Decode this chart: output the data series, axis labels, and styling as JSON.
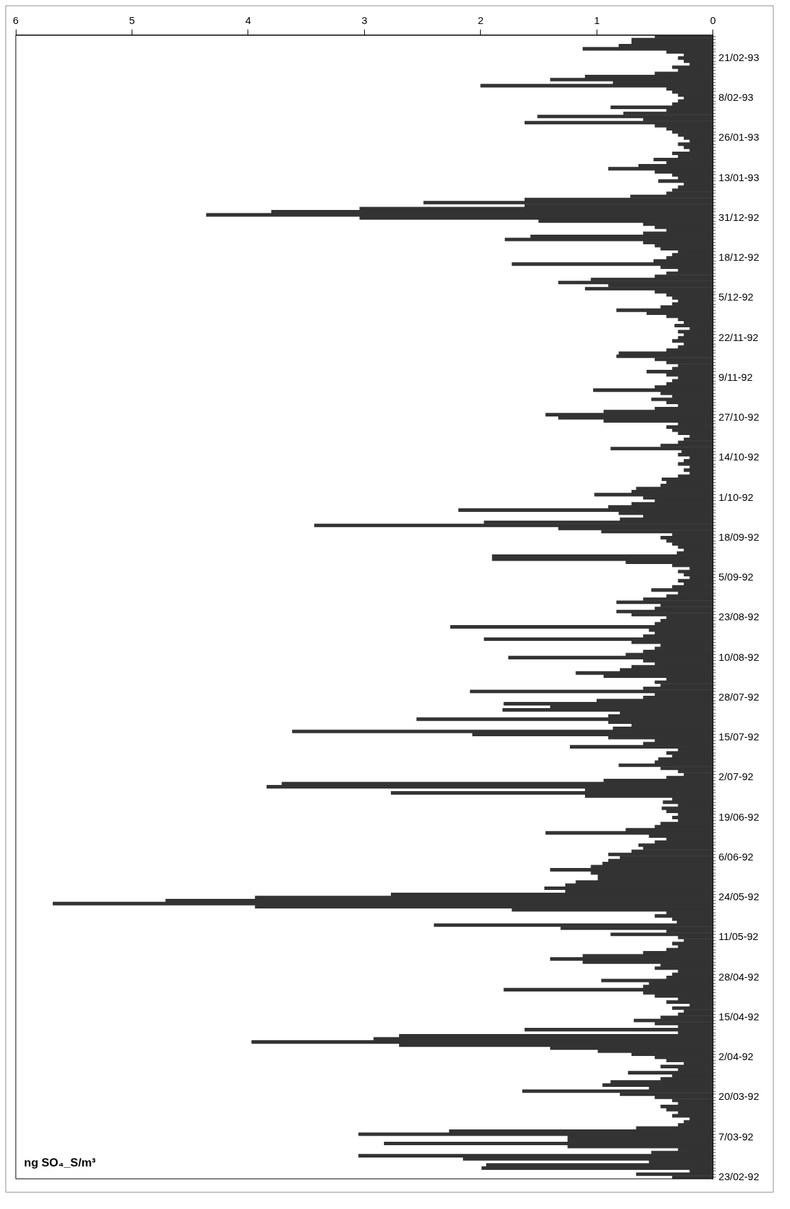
{
  "chart_data": {
    "type": "bar",
    "orientation": "horizontal",
    "xlabel": "ng SO₄_S/m³",
    "categories": [
      null,
      null,
      null,
      null,
      null,
      null,
      null,
      "21/02-93",
      null,
      null,
      null,
      null,
      null,
      null,
      null,
      null,
      null,
      null,
      null,
      null,
      "8/02-93",
      null,
      null,
      null,
      null,
      null,
      null,
      null,
      null,
      null,
      null,
      null,
      null,
      "26/01-93",
      null,
      null,
      null,
      null,
      null,
      null,
      null,
      null,
      null,
      null,
      null,
      null,
      "13/01-93",
      null,
      null,
      null,
      null,
      null,
      null,
      null,
      null,
      null,
      null,
      null,
      null,
      "31/12-92",
      null,
      null,
      null,
      null,
      null,
      null,
      null,
      null,
      null,
      null,
      null,
      null,
      "18/12-92",
      null,
      null,
      null,
      null,
      null,
      null,
      null,
      null,
      null,
      null,
      null,
      null,
      "5/12-92",
      null,
      null,
      null,
      null,
      null,
      null,
      null,
      null,
      null,
      null,
      null,
      null,
      "22/11-92",
      null,
      null,
      null,
      null,
      null,
      null,
      null,
      null,
      null,
      null,
      null,
      null,
      "9/11-92",
      null,
      null,
      null,
      null,
      null,
      null,
      null,
      null,
      null,
      null,
      null,
      null,
      "27/10-92",
      null,
      null,
      null,
      null,
      null,
      null,
      null,
      null,
      null,
      null,
      null,
      null,
      "14/10-92",
      null,
      null,
      null,
      null,
      null,
      null,
      null,
      null,
      null,
      null,
      null,
      null,
      "1/10-92",
      null,
      null,
      null,
      null,
      null,
      null,
      null,
      null,
      null,
      null,
      null,
      null,
      "18/09-92",
      null,
      null,
      null,
      null,
      null,
      null,
      null,
      null,
      null,
      null,
      null,
      null,
      "5/09-92",
      null,
      null,
      null,
      null,
      null,
      null,
      null,
      null,
      null,
      null,
      null,
      null,
      "23/08-92",
      null,
      null,
      null,
      null,
      null,
      null,
      null,
      null,
      null,
      null,
      null,
      null,
      "10/08-92",
      null,
      null,
      null,
      null,
      null,
      null,
      null,
      null,
      null,
      null,
      null,
      null,
      "28/07-92",
      null,
      null,
      null,
      null,
      null,
      null,
      null,
      null,
      null,
      null,
      null,
      null,
      "15/07-92",
      null,
      null,
      null,
      null,
      null,
      null,
      null,
      null,
      null,
      null,
      null,
      null,
      "2/07-92",
      null,
      null,
      null,
      null,
      null,
      null,
      null,
      null,
      null,
      null,
      null,
      null,
      "19/06-92",
      null,
      null,
      null,
      null,
      null,
      null,
      null,
      null,
      null,
      null,
      null,
      null,
      "6/06-92",
      null,
      null,
      null,
      null,
      null,
      null,
      null,
      null,
      null,
      null,
      null,
      null,
      "24/05-92",
      null,
      null,
      null,
      null,
      null,
      null,
      null,
      null,
      null,
      null,
      null,
      null,
      "11/05-92",
      null,
      null,
      null,
      null,
      null,
      null,
      null,
      null,
      null,
      null,
      null,
      null,
      "28/04-92",
      null,
      null,
      null,
      null,
      null,
      null,
      null,
      null,
      null,
      null,
      null,
      null,
      "15/04-92",
      null,
      null,
      null,
      null,
      null,
      null,
      null,
      null,
      null,
      null,
      null,
      null,
      "2/04-92",
      null,
      null,
      null,
      null,
      null,
      null,
      null,
      null,
      null,
      null,
      null,
      null,
      "20/03-92",
      null,
      null,
      null,
      null,
      null,
      null,
      null,
      null,
      null,
      null,
      null,
      null,
      "7/03-92",
      null,
      null,
      null,
      null,
      null,
      null,
      null,
      null,
      null,
      null,
      null,
      null,
      "23/02-92"
    ],
    "values": [
      0.5,
      0.7,
      0.7,
      0.81,
      1.12,
      0.4,
      0.25,
      0.3,
      0.25,
      0.2,
      0.35,
      0.3,
      0.5,
      1.1,
      1.4,
      0.86,
      2.0,
      0.4,
      0.35,
      0.3,
      0.25,
      0.3,
      0.35,
      0.88,
      0.4,
      0.77,
      1.51,
      0.6,
      1.62,
      0.5,
      0.4,
      0.35,
      0.3,
      0.25,
      0.2,
      0.3,
      0.25,
      0.2,
      0.35,
      0.3,
      0.51,
      0.4,
      0.64,
      0.9,
      0.5,
      0.35,
      0.3,
      0.47,
      0.25,
      0.3,
      0.35,
      0.4,
      0.71,
      1.62,
      2.49,
      1.62,
      3.04,
      3.8,
      4.36,
      3.04,
      1.5,
      0.6,
      0.5,
      0.4,
      0.6,
      1.57,
      1.79,
      0.6,
      0.5,
      0.45,
      0.3,
      0.35,
      0.4,
      0.51,
      1.73,
      0.45,
      0.3,
      0.4,
      0.5,
      1.05,
      1.33,
      0.9,
      1.1,
      0.5,
      0.4,
      0.35,
      0.3,
      0.35,
      0.45,
      0.83,
      0.57,
      0.4,
      0.3,
      0.25,
      0.33,
      0.2,
      0.3,
      0.25,
      0.3,
      0.35,
      0.25,
      0.3,
      0.4,
      0.81,
      0.83,
      0.5,
      0.4,
      0.3,
      0.35,
      0.57,
      0.4,
      0.3,
      0.35,
      0.4,
      0.5,
      1.03,
      0.45,
      0.35,
      0.53,
      0.4,
      0.3,
      0.5,
      0.94,
      1.44,
      1.33,
      0.94,
      0.3,
      0.4,
      0.35,
      0.3,
      0.2,
      0.25,
      0.3,
      0.45,
      0.88,
      0.27,
      0.3,
      0.2,
      0.25,
      0.3,
      0.2,
      0.25,
      0.2,
      0.3,
      0.44,
      0.4,
      0.45,
      0.66,
      0.7,
      1.02,
      0.6,
      0.5,
      0.7,
      0.9,
      2.19,
      0.81,
      0.6,
      0.8,
      1.97,
      3.43,
      1.33,
      0.96,
      0.35,
      0.45,
      0.4,
      0.35,
      0.3,
      0.25,
      0.31,
      1.9,
      1.9,
      0.75,
      0.35,
      0.2,
      0.3,
      0.25,
      0.2,
      0.3,
      0.25,
      0.35,
      0.53,
      0.3,
      0.4,
      0.6,
      0.83,
      0.45,
      0.5,
      0.83,
      0.7,
      0.4,
      0.45,
      0.5,
      2.26,
      0.55,
      0.5,
      0.6,
      1.97,
      0.7,
      0.45,
      0.5,
      0.6,
      0.75,
      1.76,
      0.6,
      0.5,
      0.7,
      0.8,
      1.18,
      0.94,
      0.4,
      0.5,
      0.45,
      0.6,
      2.09,
      0.5,
      0.6,
      1.0,
      1.8,
      1.4,
      1.81,
      0.8,
      0.9,
      2.55,
      0.9,
      0.7,
      0.86,
      3.62,
      2.07,
      0.9,
      0.5,
      0.6,
      1.23,
      0.3,
      0.4,
      0.35,
      0.47,
      0.5,
      0.81,
      0.45,
      0.3,
      0.25,
      0.4,
      0.94,
      3.71,
      3.84,
      1.1,
      2.77,
      1.1,
      0.35,
      0.43,
      0.3,
      0.44,
      0.4,
      0.3,
      0.35,
      0.3,
      0.45,
      0.5,
      0.75,
      1.44,
      0.55,
      0.4,
      0.5,
      0.64,
      0.6,
      0.7,
      0.9,
      0.8,
      0.9,
      0.95,
      1.05,
      1.4,
      1.05,
      0.99,
      0.99,
      1.18,
      1.27,
      1.45,
      1.27,
      2.77,
      3.94,
      4.71,
      5.68,
      3.94,
      1.73,
      0.4,
      0.5,
      0.35,
      0.31,
      2.4,
      1.31,
      0.4,
      0.88,
      0.3,
      0.25,
      0.35,
      0.3,
      0.4,
      0.6,
      1.12,
      1.4,
      1.12,
      0.45,
      0.5,
      0.3,
      0.35,
      0.4,
      0.96,
      0.55,
      0.6,
      1.8,
      0.6,
      0.5,
      0.3,
      0.4,
      0.2,
      0.35,
      0.25,
      0.3,
      0.45,
      0.68,
      0.5,
      0.3,
      1.62,
      0.3,
      2.7,
      2.92,
      3.97,
      2.7,
      1.4,
      0.99,
      0.7,
      0.5,
      0.4,
      0.25,
      0.45,
      0.3,
      0.73,
      0.35,
      0.45,
      0.88,
      0.95,
      0.55,
      1.64,
      0.8,
      0.5,
      0.35,
      0.3,
      0.45,
      0.4,
      0.3,
      0.35,
      0.2,
      0.25,
      0.3,
      0.66,
      2.27,
      3.05,
      1.25,
      1.25,
      2.83,
      1.25,
      0.3,
      0.53,
      3.05,
      2.15,
      0.55,
      1.95,
      1.99,
      0.2,
      0.66,
      0.35
    ],
    "color": "#333333",
    "xlim": [
      6,
      0
    ],
    "xticks": [
      0,
      1,
      2,
      3,
      4,
      5,
      6
    ],
    "grid": false,
    "legend": false
  }
}
